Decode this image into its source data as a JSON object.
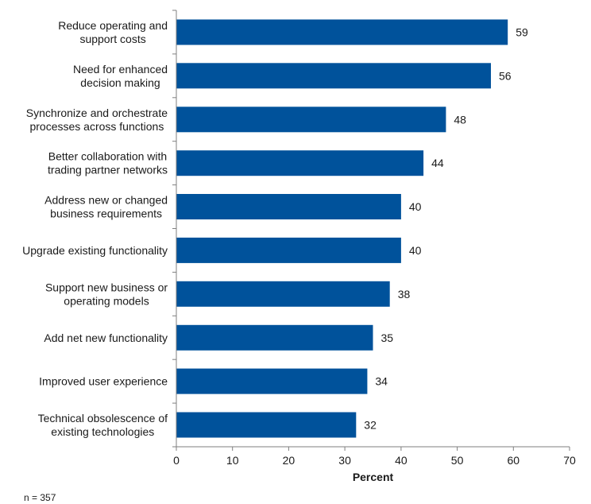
{
  "chart_data": {
    "type": "bar",
    "orientation": "horizontal",
    "title": "",
    "xlabel": "Percent",
    "ylabel": "",
    "xlim": [
      0,
      70
    ],
    "xticks": [
      0,
      10,
      20,
      30,
      40,
      50,
      60,
      70
    ],
    "grid": false,
    "legend": null,
    "bar_color": "#00529B",
    "categories": [
      [
        "Reduce operating and",
        "support costs"
      ],
      [
        "Need for enhanced",
        "decision making"
      ],
      [
        "Synchronize and orchestrate",
        "processes across functions"
      ],
      [
        "Better collaboration with",
        "trading partner networks"
      ],
      [
        "Address new or changed",
        "business requirements"
      ],
      [
        "Upgrade existing functionality"
      ],
      [
        "Support new business or",
        "operating models"
      ],
      [
        "Add net new functionality"
      ],
      [
        "Improved user experience"
      ],
      [
        "Technical obsolescence of",
        "existing technologies"
      ]
    ],
    "values": [
      59,
      56,
      48,
      44,
      40,
      40,
      38,
      35,
      34,
      32
    ],
    "data_labels": [
      "59",
      "56",
      "48",
      "44",
      "40",
      "40",
      "38",
      "35",
      "34",
      "32"
    ],
    "footnote": "n = 357"
  }
}
